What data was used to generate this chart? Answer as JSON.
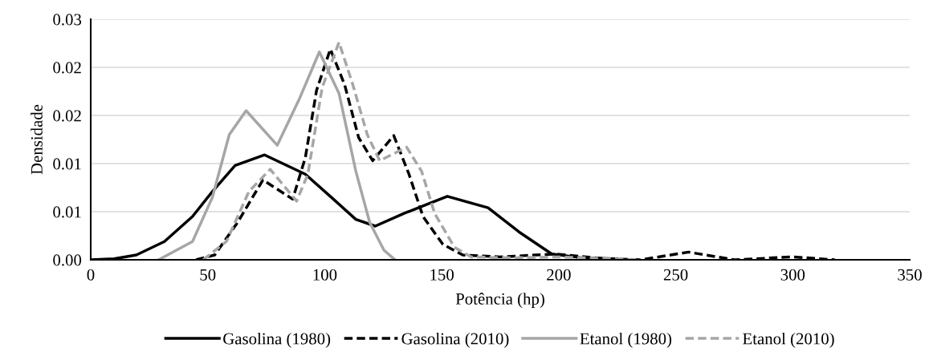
{
  "chart_data": {
    "type": "line",
    "xlabel": "Potência (hp)",
    "ylabel": "Densidade",
    "xlim": [
      0,
      350
    ],
    "xticks": [
      0,
      50,
      100,
      150,
      200,
      250,
      300,
      350
    ],
    "ylim": [
      0,
      0.025
    ],
    "yticks": [
      {
        "value": 0,
        "label": "0.00"
      },
      {
        "value": 0.005,
        "label": "0.01"
      },
      {
        "value": 0.01,
        "label": "0.01"
      },
      {
        "value": 0.015,
        "label": "0.02"
      },
      {
        "value": 0.02,
        "label": "0.02"
      },
      {
        "value": 0.025,
        "label": "0.03"
      }
    ],
    "grid": "y",
    "legend": "bottom",
    "marker": "none",
    "series": [
      {
        "name": "Gasolina (1980)",
        "color": "#000000",
        "line_style": "solid",
        "x": [
          0,
          10,
          19.5,
          31.5,
          43.5,
          52,
          61.7,
          74.3,
          91.7,
          103.7,
          113.3,
          121.6,
          133.7,
          152.4,
          169.8,
          183,
          197,
          210,
          225
        ],
        "values": [
          0,
          0.0001,
          0.0005,
          0.0019,
          0.0045,
          0.0071,
          0.0098,
          0.0109,
          0.0089,
          0.0063,
          0.0042,
          0.0035,
          0.0048,
          0.0066,
          0.0054,
          0.0029,
          0.0006,
          0.0002,
          0.0001
        ]
      },
      {
        "name": "Gasolina (2010)",
        "color": "#000000",
        "line_style": "dashed",
        "x": [
          45,
          53,
          62.8,
          73.6,
          86.3,
          91.7,
          96.5,
          102.4,
          108.5,
          114.5,
          120.5,
          129.5,
          136,
          142,
          150.5,
          159,
          175,
          198.6,
          220,
          235,
          255.5,
          275,
          300,
          318
        ],
        "values": [
          0,
          0.0005,
          0.0039,
          0.0083,
          0.0063,
          0.0106,
          0.0176,
          0.0219,
          0.0182,
          0.0127,
          0.0103,
          0.0129,
          0.0089,
          0.0045,
          0.0016,
          0.0005,
          0.0003,
          0.0006,
          0.0001,
          0,
          0.0008,
          0,
          0.0003,
          0
        ]
      },
      {
        "name": "Etanol (1980)",
        "color": "#a6a6a6",
        "line_style": "solid",
        "x": [
          29,
          43.5,
          52,
          59.2,
          66.4,
          79.7,
          89.3,
          97.7,
          106.1,
          113.3,
          119.2,
          125.3,
          130
        ],
        "values": [
          0,
          0.0019,
          0.0065,
          0.013,
          0.0155,
          0.0119,
          0.0168,
          0.0216,
          0.0173,
          0.0092,
          0.0039,
          0.001,
          0
        ]
      },
      {
        "name": "Etanol (2010)",
        "color": "#a6a6a6",
        "line_style": "dashed",
        "x": [
          48,
          58,
          67.6,
          76.7,
          88,
          92.8,
          98.9,
          106.1,
          112,
          118.2,
          123.5,
          135,
          141.4,
          147,
          155.4,
          162.6,
          180,
          200,
          235
        ],
        "values": [
          0,
          0.0019,
          0.0071,
          0.0094,
          0.0061,
          0.0089,
          0.0179,
          0.0226,
          0.0182,
          0.013,
          0.0103,
          0.0117,
          0.0092,
          0.0048,
          0.0013,
          0.0003,
          0.0002,
          0.0003,
          0
        ]
      }
    ]
  }
}
